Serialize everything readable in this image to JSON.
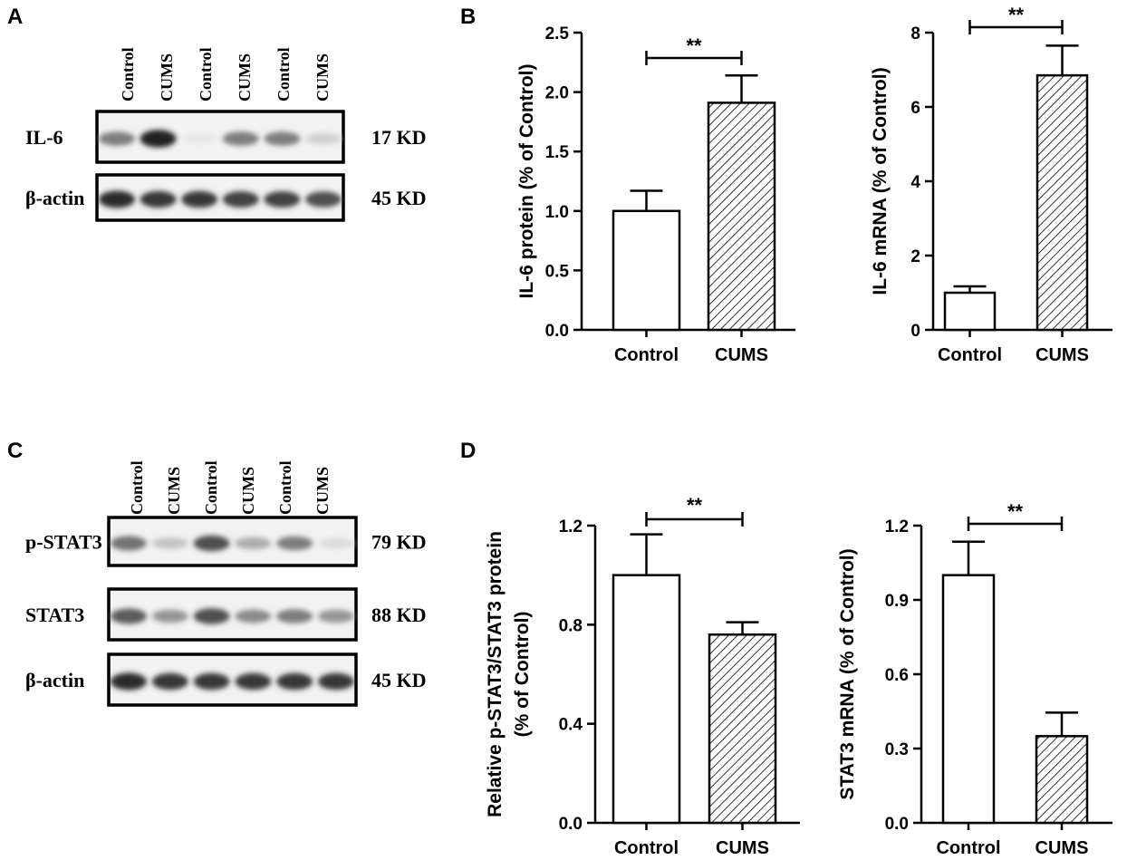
{
  "panels": {
    "A": "A",
    "B": "B",
    "C": "C",
    "D": "D"
  },
  "blot_a": {
    "lanes": [
      "Control",
      "CUMS",
      "Control",
      "CUMS",
      "Control",
      "CUMS"
    ],
    "rows": [
      {
        "label": "IL-6",
        "size": "17 KD",
        "intensities": [
          0.55,
          0.95,
          0.1,
          0.55,
          0.55,
          0.2
        ]
      },
      {
        "label": "β-actin",
        "size": "45 KD",
        "intensities": [
          0.9,
          0.85,
          0.85,
          0.8,
          0.8,
          0.75
        ]
      }
    ]
  },
  "blot_c": {
    "lanes": [
      "Control",
      "CUMS",
      "Control",
      "CUMS",
      "Control",
      "CUMS"
    ],
    "rows": [
      {
        "label": "p-STAT3",
        "size": "79 KD",
        "intensities": [
          0.6,
          0.25,
          0.75,
          0.35,
          0.55,
          0.15
        ]
      },
      {
        "label": "STAT3",
        "size": "88 KD",
        "intensities": [
          0.7,
          0.45,
          0.75,
          0.5,
          0.55,
          0.45
        ]
      },
      {
        "label": "β-actin",
        "size": "45 KD",
        "intensities": [
          0.9,
          0.85,
          0.85,
          0.85,
          0.85,
          0.85
        ]
      }
    ]
  },
  "chart_data": [
    {
      "type": "bar",
      "panel": "B",
      "categories": [
        "Control",
        "CUMS"
      ],
      "values": [
        1.0,
        1.91
      ],
      "errors": [
        0.17,
        0.23
      ],
      "ylabel": "IL-6 protein (% of Control)",
      "ylim": [
        0,
        2.5
      ],
      "yticks": [
        "0.0",
        "0.5",
        "1.0",
        "1.5",
        "2.0",
        "2.5"
      ],
      "significance": "**",
      "fills": [
        "white",
        "hatched"
      ]
    },
    {
      "type": "bar",
      "panel": "B",
      "categories": [
        "Control",
        "CUMS"
      ],
      "values": [
        1.0,
        6.85
      ],
      "errors": [
        0.17,
        0.8
      ],
      "ylabel": "IL-6 mRNA (% of Control)",
      "ylim": [
        0,
        8
      ],
      "yticks": [
        "0",
        "2",
        "4",
        "6",
        "8"
      ],
      "significance": "**",
      "fills": [
        "white",
        "hatched"
      ]
    },
    {
      "type": "bar",
      "panel": "D",
      "categories": [
        "Control",
        "CUMS"
      ],
      "values": [
        1.0,
        0.76
      ],
      "errors": [
        0.165,
        0.05
      ],
      "ylabel": "Relative p-STAT3/STAT3 protein",
      "ylabel2": "(% of Control)",
      "ylim": [
        0,
        1.2
      ],
      "yticks": [
        "0.0",
        "0.4",
        "0.8",
        "1.2"
      ],
      "significance": "**",
      "fills": [
        "white",
        "hatched"
      ]
    },
    {
      "type": "bar",
      "panel": "D",
      "categories": [
        "Control",
        "CUMS"
      ],
      "values": [
        1.0,
        0.35
      ],
      "errors": [
        0.135,
        0.095
      ],
      "ylabel": "STAT3 mRNA (% of Control)",
      "ylim": [
        0,
        1.2
      ],
      "yticks": [
        "0.0",
        "0.3",
        "0.6",
        "0.9",
        "1.2"
      ],
      "significance": "**",
      "fills": [
        "white",
        "hatched"
      ]
    }
  ]
}
